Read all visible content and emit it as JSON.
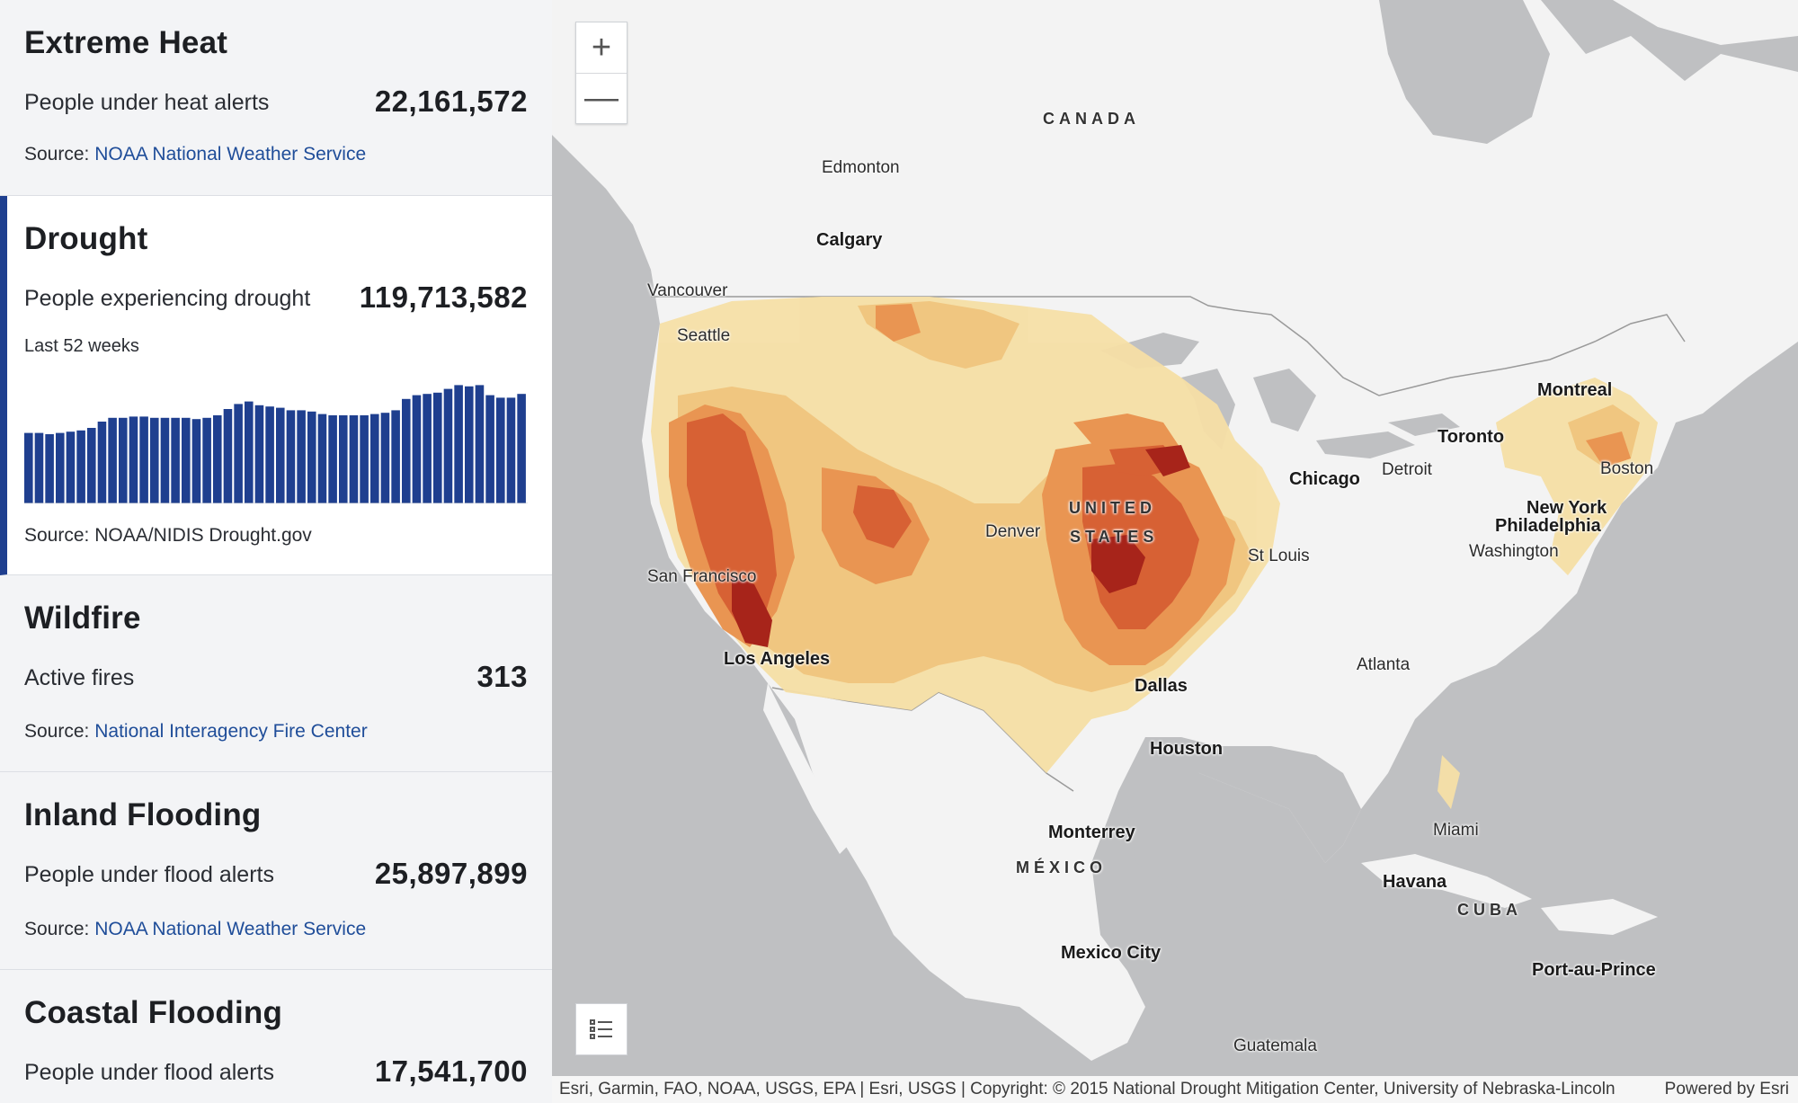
{
  "sidebar": {
    "cards": [
      {
        "title": "Extreme Heat",
        "metric_label": "People under heat alerts",
        "metric_value": "22,161,572",
        "source_prefix": "Source:",
        "source_link": "NOAA National Weather Service"
      },
      {
        "title": "Drought",
        "metric_label": "People experiencing drought",
        "metric_value": "119,713,582",
        "sub_label": "Last 52 weeks",
        "source_prefix": "Source:",
        "source_text": "NOAA/NIDIS Drought.gov"
      },
      {
        "title": "Wildfire",
        "metric_label": "Active fires",
        "metric_value": "313",
        "source_prefix": "Source:",
        "source_link": "National Interagency Fire Center"
      },
      {
        "title": "Inland Flooding",
        "metric_label": "People under flood alerts",
        "metric_value": "25,897,899",
        "source_prefix": "Source:",
        "source_link": "NOAA National Weather Service"
      },
      {
        "title": "Coastal Flooding",
        "metric_label": "People under flood alerts",
        "metric_value": "17,541,700"
      }
    ]
  },
  "chart_data": {
    "type": "bar",
    "title": "",
    "xlabel": "",
    "ylabel": "",
    "ylim": [
      0,
      100
    ],
    "bar_color": "#1f3f8f",
    "grid": false,
    "values": [
      56,
      56,
      55,
      56,
      57,
      58,
      60,
      65,
      68,
      68,
      69,
      69,
      68,
      68,
      68,
      68,
      67,
      68,
      70,
      75,
      79,
      81,
      78,
      77,
      76,
      74,
      74,
      73,
      71,
      70,
      70,
      70,
      70,
      71,
      72,
      74,
      83,
      86,
      87,
      88,
      91,
      94,
      93,
      94,
      86,
      84,
      84,
      87
    ]
  },
  "map": {
    "zoom_in": "+",
    "zoom_out": "—",
    "legend_icon": "legend-list-icon",
    "labels": [
      {
        "text": "CANADA",
        "kind": "country"
      },
      {
        "text": "Edmonton",
        "kind": "city"
      },
      {
        "text": "Calgary",
        "kind": "city-big"
      },
      {
        "text": "Vancouver",
        "kind": "city"
      },
      {
        "text": "Seattle",
        "kind": "city"
      },
      {
        "text": "Montreal",
        "kind": "city-big"
      },
      {
        "text": "Toronto",
        "kind": "city-big"
      },
      {
        "text": "Detroit",
        "kind": "city"
      },
      {
        "text": "Chicago",
        "kind": "city-big"
      },
      {
        "text": "Boston",
        "kind": "city"
      },
      {
        "text": "New York",
        "kind": "city-big"
      },
      {
        "text": "Philadelphia",
        "kind": "city-big"
      },
      {
        "text": "Washington",
        "kind": "city"
      },
      {
        "text": "UNITED",
        "kind": "country"
      },
      {
        "text": "STATES",
        "kind": "country"
      },
      {
        "text": "Denver",
        "kind": "city"
      },
      {
        "text": "St Louis",
        "kind": "city"
      },
      {
        "text": "San Francisco",
        "kind": "city"
      },
      {
        "text": "Los Angeles",
        "kind": "city-big"
      },
      {
        "text": "Atlanta",
        "kind": "city"
      },
      {
        "text": "Dallas",
        "kind": "city-big"
      },
      {
        "text": "Houston",
        "kind": "city-big"
      },
      {
        "text": "Miami",
        "kind": "city"
      },
      {
        "text": "Monterrey",
        "kind": "city-big"
      },
      {
        "text": "MÉXICO",
        "kind": "country"
      },
      {
        "text": "Havana",
        "kind": "city-big"
      },
      {
        "text": "CUBA",
        "kind": "country"
      },
      {
        "text": "Mexico City",
        "kind": "city-big"
      },
      {
        "text": "Port-au-Prince",
        "kind": "city-big"
      },
      {
        "text": "Guatemala",
        "kind": "city"
      }
    ],
    "attribution": "Esri, Garmin, FAO, NOAA, USGS, EPA | Esri, USGS | Copyright: © 2015 National Drought Mitigation Center, University of Nebraska-Lincoln",
    "powered_by": "Powered by Esri",
    "colors": {
      "water": "#bfc0c2",
      "land": "#f2f2f2",
      "d0": "#f6dfa6",
      "d1": "#f0c47a",
      "d2": "#e9904a",
      "d3": "#d65a2a",
      "d4": "#a3190f"
    }
  }
}
